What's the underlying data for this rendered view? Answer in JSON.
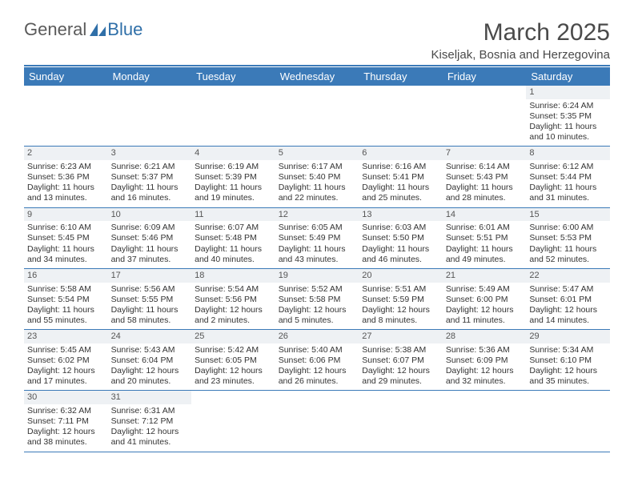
{
  "brand": {
    "general": "General",
    "blue": "Blue"
  },
  "title": "March 2025",
  "location": "Kiseljak, Bosnia and Herzegovina",
  "colors": {
    "header_bar": "#3b7ab8",
    "daynum_bg": "#eef1f4",
    "border": "#3b7ab8"
  },
  "weekdays": [
    "Sunday",
    "Monday",
    "Tuesday",
    "Wednesday",
    "Thursday",
    "Friday",
    "Saturday"
  ],
  "weeks": [
    [
      null,
      null,
      null,
      null,
      null,
      null,
      {
        "n": "1",
        "sr": "Sunrise: 6:24 AM",
        "ss": "Sunset: 5:35 PM",
        "d1": "Daylight: 11 hours",
        "d2": "and 10 minutes."
      }
    ],
    [
      {
        "n": "2",
        "sr": "Sunrise: 6:23 AM",
        "ss": "Sunset: 5:36 PM",
        "d1": "Daylight: 11 hours",
        "d2": "and 13 minutes."
      },
      {
        "n": "3",
        "sr": "Sunrise: 6:21 AM",
        "ss": "Sunset: 5:37 PM",
        "d1": "Daylight: 11 hours",
        "d2": "and 16 minutes."
      },
      {
        "n": "4",
        "sr": "Sunrise: 6:19 AM",
        "ss": "Sunset: 5:39 PM",
        "d1": "Daylight: 11 hours",
        "d2": "and 19 minutes."
      },
      {
        "n": "5",
        "sr": "Sunrise: 6:17 AM",
        "ss": "Sunset: 5:40 PM",
        "d1": "Daylight: 11 hours",
        "d2": "and 22 minutes."
      },
      {
        "n": "6",
        "sr": "Sunrise: 6:16 AM",
        "ss": "Sunset: 5:41 PM",
        "d1": "Daylight: 11 hours",
        "d2": "and 25 minutes."
      },
      {
        "n": "7",
        "sr": "Sunrise: 6:14 AM",
        "ss": "Sunset: 5:43 PM",
        "d1": "Daylight: 11 hours",
        "d2": "and 28 minutes."
      },
      {
        "n": "8",
        "sr": "Sunrise: 6:12 AM",
        "ss": "Sunset: 5:44 PM",
        "d1": "Daylight: 11 hours",
        "d2": "and 31 minutes."
      }
    ],
    [
      {
        "n": "9",
        "sr": "Sunrise: 6:10 AM",
        "ss": "Sunset: 5:45 PM",
        "d1": "Daylight: 11 hours",
        "d2": "and 34 minutes."
      },
      {
        "n": "10",
        "sr": "Sunrise: 6:09 AM",
        "ss": "Sunset: 5:46 PM",
        "d1": "Daylight: 11 hours",
        "d2": "and 37 minutes."
      },
      {
        "n": "11",
        "sr": "Sunrise: 6:07 AM",
        "ss": "Sunset: 5:48 PM",
        "d1": "Daylight: 11 hours",
        "d2": "and 40 minutes."
      },
      {
        "n": "12",
        "sr": "Sunrise: 6:05 AM",
        "ss": "Sunset: 5:49 PM",
        "d1": "Daylight: 11 hours",
        "d2": "and 43 minutes."
      },
      {
        "n": "13",
        "sr": "Sunrise: 6:03 AM",
        "ss": "Sunset: 5:50 PM",
        "d1": "Daylight: 11 hours",
        "d2": "and 46 minutes."
      },
      {
        "n": "14",
        "sr": "Sunrise: 6:01 AM",
        "ss": "Sunset: 5:51 PM",
        "d1": "Daylight: 11 hours",
        "d2": "and 49 minutes."
      },
      {
        "n": "15",
        "sr": "Sunrise: 6:00 AM",
        "ss": "Sunset: 5:53 PM",
        "d1": "Daylight: 11 hours",
        "d2": "and 52 minutes."
      }
    ],
    [
      {
        "n": "16",
        "sr": "Sunrise: 5:58 AM",
        "ss": "Sunset: 5:54 PM",
        "d1": "Daylight: 11 hours",
        "d2": "and 55 minutes."
      },
      {
        "n": "17",
        "sr": "Sunrise: 5:56 AM",
        "ss": "Sunset: 5:55 PM",
        "d1": "Daylight: 11 hours",
        "d2": "and 58 minutes."
      },
      {
        "n": "18",
        "sr": "Sunrise: 5:54 AM",
        "ss": "Sunset: 5:56 PM",
        "d1": "Daylight: 12 hours",
        "d2": "and 2 minutes."
      },
      {
        "n": "19",
        "sr": "Sunrise: 5:52 AM",
        "ss": "Sunset: 5:58 PM",
        "d1": "Daylight: 12 hours",
        "d2": "and 5 minutes."
      },
      {
        "n": "20",
        "sr": "Sunrise: 5:51 AM",
        "ss": "Sunset: 5:59 PM",
        "d1": "Daylight: 12 hours",
        "d2": "and 8 minutes."
      },
      {
        "n": "21",
        "sr": "Sunrise: 5:49 AM",
        "ss": "Sunset: 6:00 PM",
        "d1": "Daylight: 12 hours",
        "d2": "and 11 minutes."
      },
      {
        "n": "22",
        "sr": "Sunrise: 5:47 AM",
        "ss": "Sunset: 6:01 PM",
        "d1": "Daylight: 12 hours",
        "d2": "and 14 minutes."
      }
    ],
    [
      {
        "n": "23",
        "sr": "Sunrise: 5:45 AM",
        "ss": "Sunset: 6:02 PM",
        "d1": "Daylight: 12 hours",
        "d2": "and 17 minutes."
      },
      {
        "n": "24",
        "sr": "Sunrise: 5:43 AM",
        "ss": "Sunset: 6:04 PM",
        "d1": "Daylight: 12 hours",
        "d2": "and 20 minutes."
      },
      {
        "n": "25",
        "sr": "Sunrise: 5:42 AM",
        "ss": "Sunset: 6:05 PM",
        "d1": "Daylight: 12 hours",
        "d2": "and 23 minutes."
      },
      {
        "n": "26",
        "sr": "Sunrise: 5:40 AM",
        "ss": "Sunset: 6:06 PM",
        "d1": "Daylight: 12 hours",
        "d2": "and 26 minutes."
      },
      {
        "n": "27",
        "sr": "Sunrise: 5:38 AM",
        "ss": "Sunset: 6:07 PM",
        "d1": "Daylight: 12 hours",
        "d2": "and 29 minutes."
      },
      {
        "n": "28",
        "sr": "Sunrise: 5:36 AM",
        "ss": "Sunset: 6:09 PM",
        "d1": "Daylight: 12 hours",
        "d2": "and 32 minutes."
      },
      {
        "n": "29",
        "sr": "Sunrise: 5:34 AM",
        "ss": "Sunset: 6:10 PM",
        "d1": "Daylight: 12 hours",
        "d2": "and 35 minutes."
      }
    ],
    [
      {
        "n": "30",
        "sr": "Sunrise: 6:32 AM",
        "ss": "Sunset: 7:11 PM",
        "d1": "Daylight: 12 hours",
        "d2": "and 38 minutes."
      },
      {
        "n": "31",
        "sr": "Sunrise: 6:31 AM",
        "ss": "Sunset: 7:12 PM",
        "d1": "Daylight: 12 hours",
        "d2": "and 41 minutes."
      },
      null,
      null,
      null,
      null,
      null
    ]
  ]
}
